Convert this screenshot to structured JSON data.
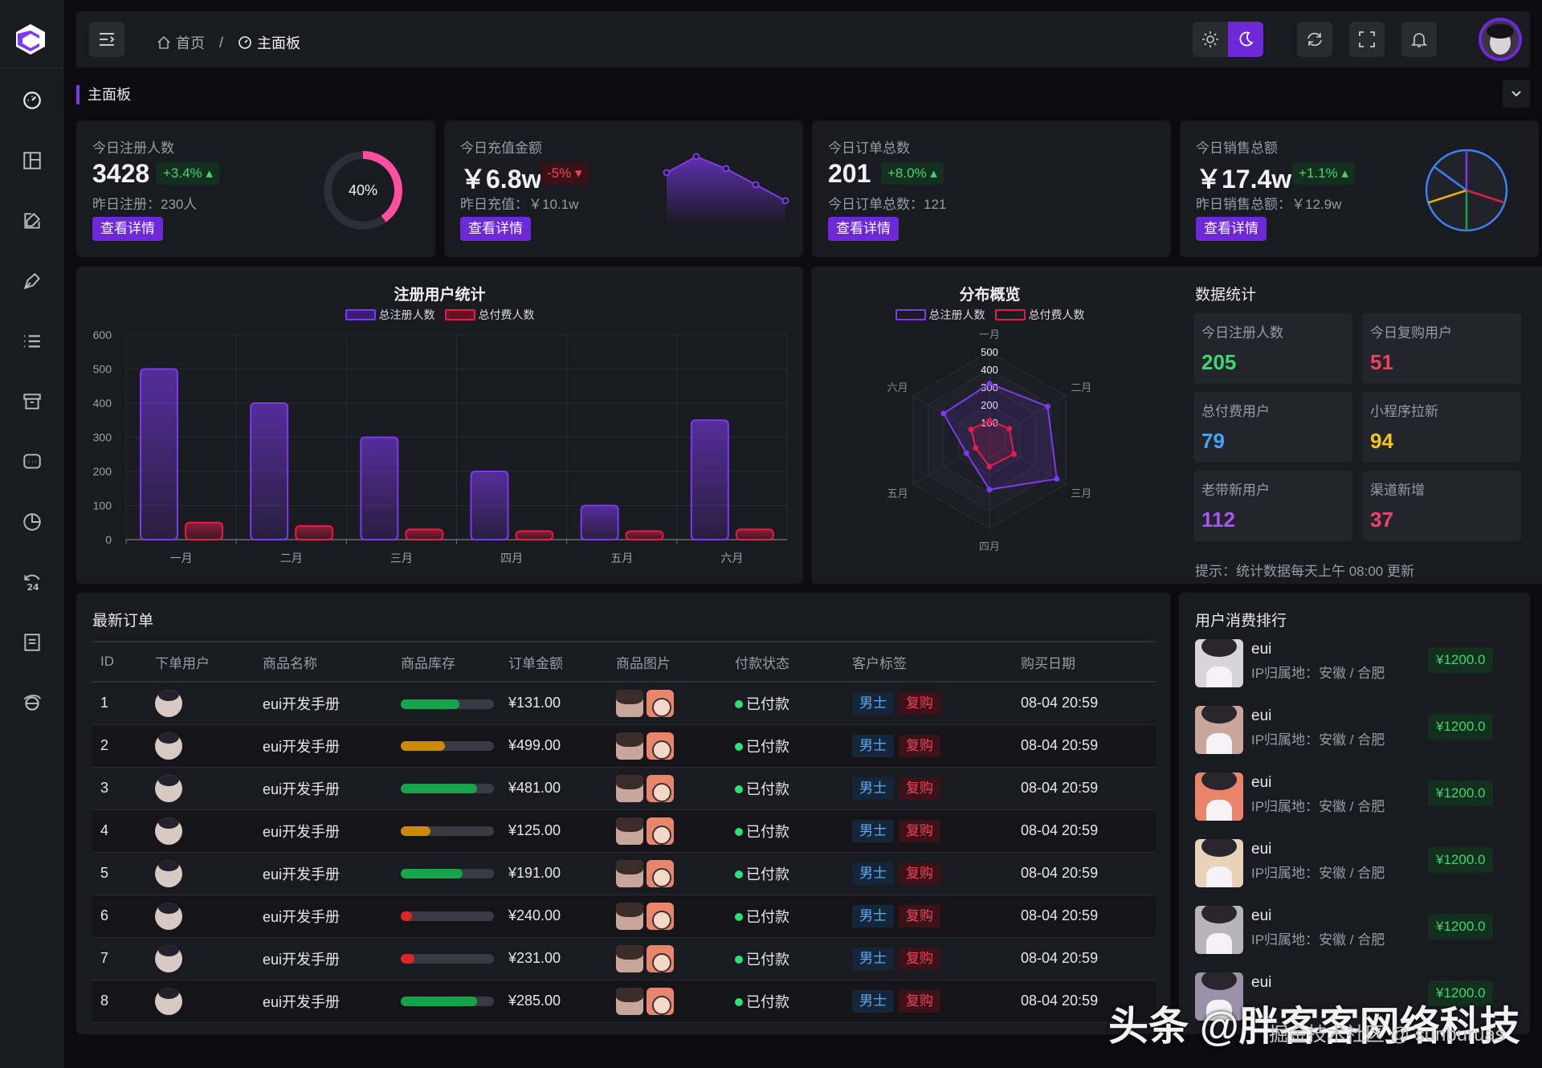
{
  "colors": {
    "accent": "#6d28d9",
    "panel": "#1a1a21",
    "bg": "#0c0c10",
    "green": "#3ed671",
    "red": "#f0415a"
  },
  "header": {
    "breadcrumb": [
      {
        "icon": "home-icon",
        "label": "首页"
      },
      {
        "icon": "dashboard-icon",
        "label": "主面板"
      }
    ],
    "separator": "/",
    "icons": [
      "sun-icon",
      "moon-icon",
      "refresh-icon",
      "fullscreen-icon",
      "bell-icon",
      "avatar"
    ]
  },
  "tabs": {
    "active": "主面板"
  },
  "sidebar": {
    "items": [
      "dashboard-icon",
      "layout-icon",
      "edit-icon",
      "pen-icon",
      "list-icon",
      "archive-icon",
      "message-icon",
      "pie-icon",
      "hours-24-icon",
      "document-icon",
      "ie-icon"
    ]
  },
  "stats": [
    {
      "label": "今日注册人数",
      "value": "3428",
      "change": "+3.4%",
      "trend": "up",
      "sub": "昨日注册：230人",
      "button": "查看详情",
      "ring": "40%"
    },
    {
      "label": "今日充值金额",
      "value": "￥6.8w",
      "change": "-5%",
      "trend": "down",
      "sub": "昨日充值：￥10.1w",
      "button": "查看详情"
    },
    {
      "label": "今日订单总数",
      "value": "201",
      "change": "+8.0%",
      "trend": "up",
      "sub": "今日订单总数：121",
      "button": "查看详情"
    },
    {
      "label": "今日销售总额",
      "value": "￥17.4w",
      "change": "+1.1%",
      "trend": "up",
      "sub": "昨日销售总额：￥12.9w",
      "button": "查看详情"
    }
  ],
  "chart_data": [
    {
      "type": "bar",
      "title": "注册用户统计",
      "categories": [
        "一月",
        "二月",
        "三月",
        "四月",
        "五月",
        "六月"
      ],
      "series": [
        {
          "name": "总注册人数",
          "values": [
            500,
            400,
            300,
            200,
            100,
            350
          ],
          "color": "#7c3aed"
        },
        {
          "name": "总付费人数",
          "values": [
            50,
            40,
            30,
            25,
            25,
            30
          ],
          "color": "#e11d48"
        }
      ],
      "yticks": [
        0,
        100,
        200,
        300,
        400,
        500,
        600
      ],
      "ylim": [
        0,
        600
      ],
      "legend": "top-center"
    },
    {
      "type": "radar",
      "title": "分布概览",
      "indicators": [
        "一月",
        "二月",
        "三月",
        "四月",
        "五月",
        "六月"
      ],
      "rticks": [
        100,
        200,
        300,
        400,
        500
      ],
      "rmax": 500,
      "series": [
        {
          "name": "总注册人数",
          "values": [
            320,
            380,
            440,
            280,
            150,
            300
          ],
          "color": "#7c3aed"
        },
        {
          "name": "总付费人数",
          "values": [
            110,
            130,
            160,
            150,
            90,
            120
          ],
          "color": "#e11d48"
        }
      ],
      "legend": "top-center"
    },
    {
      "type": "line",
      "categories": [
        "1",
        "2",
        "3",
        "4",
        "5"
      ],
      "values": [
        60,
        80,
        65,
        45,
        25
      ],
      "color": "#7c3aed"
    },
    {
      "type": "pie",
      "values": [
        30,
        20,
        20,
        15,
        15
      ],
      "colors": [
        "#7c3aed",
        "#e11d48",
        "#16a34a",
        "#eab308",
        "#3b82f6"
      ]
    }
  ],
  "data_stats": {
    "title": "数据统计",
    "cells": [
      {
        "label": "今日注册人数",
        "value": "205",
        "color": "#3ed671"
      },
      {
        "label": "今日复购用户",
        "value": "51",
        "color": "#f0415a"
      },
      {
        "label": "总付费用户",
        "value": "79",
        "color": "#3ea7f0"
      },
      {
        "label": "小程序拉新",
        "value": "94",
        "color": "#f5c518"
      },
      {
        "label": "老带新用户",
        "value": "112",
        "color": "#a855f7"
      },
      {
        "label": "渠道新增",
        "value": "37",
        "color": "#f0416e"
      }
    ],
    "tip": "提示：统计数据每天上午 08:00 更新"
  },
  "orders": {
    "title": "最新订单",
    "columns": [
      "ID",
      "下单用户",
      "商品名称",
      "商品库存",
      "订单金额",
      "商品图片",
      "付款状态",
      "客户标签",
      "购买日期"
    ],
    "rows": [
      {
        "id": "1",
        "name": "eui开发手册",
        "stock": 0.63,
        "stock_color": "#16a34a",
        "amount": "¥131.00",
        "status": "已付款",
        "tag1": "男士",
        "tag2": "复购",
        "date": "08-04 20:59"
      },
      {
        "id": "2",
        "name": "eui开发手册",
        "stock": 0.47,
        "stock_color": "#ca8a04",
        "amount": "¥499.00",
        "status": "已付款",
        "tag1": "男士",
        "tag2": "复购",
        "date": "08-04 20:59"
      },
      {
        "id": "3",
        "name": "eui开发手册",
        "stock": 0.82,
        "stock_color": "#16a34a",
        "amount": "¥481.00",
        "status": "已付款",
        "tag1": "男士",
        "tag2": "复购",
        "date": "08-04 20:59"
      },
      {
        "id": "4",
        "name": "eui开发手册",
        "stock": 0.32,
        "stock_color": "#ca8a04",
        "amount": "¥125.00",
        "status": "已付款",
        "tag1": "男士",
        "tag2": "复购",
        "date": "08-04 20:59"
      },
      {
        "id": "5",
        "name": "eui开发手册",
        "stock": 0.66,
        "stock_color": "#16a34a",
        "amount": "¥191.00",
        "status": "已付款",
        "tag1": "男士",
        "tag2": "复购",
        "date": "08-04 20:59"
      },
      {
        "id": "6",
        "name": "eui开发手册",
        "stock": 0.12,
        "stock_color": "#dc2626",
        "amount": "¥240.00",
        "status": "已付款",
        "tag1": "男士",
        "tag2": "复购",
        "date": "08-04 20:59"
      },
      {
        "id": "7",
        "name": "eui开发手册",
        "stock": 0.15,
        "stock_color": "#dc2626",
        "amount": "¥231.00",
        "status": "已付款",
        "tag1": "男士",
        "tag2": "复购",
        "date": "08-04 20:59"
      },
      {
        "id": "8",
        "name": "eui开发手册",
        "stock": 0.82,
        "stock_color": "#16a34a",
        "amount": "¥285.00",
        "status": "已付款",
        "tag1": "男士",
        "tag2": "复购",
        "date": "08-04 20:59"
      }
    ]
  },
  "ranking": {
    "title": "用户消费排行",
    "items": [
      {
        "name": "eui",
        "ip": "IP归属地：安徽 / 合肥",
        "amount": "¥1200.0",
        "bg": "#d8d4dc"
      },
      {
        "name": "eui",
        "ip": "IP归属地：安徽 / 合肥",
        "amount": "¥1200.0",
        "bg": "#c9a69b"
      },
      {
        "name": "eui",
        "ip": "IP归属地：安徽 / 合肥",
        "amount": "¥1200.0",
        "bg": "#e9856b"
      },
      {
        "name": "eui",
        "ip": "IP归属地：安徽 / 合肥",
        "amount": "¥1200.0",
        "bg": "#e8d2b8"
      },
      {
        "name": "eui",
        "ip": "IP归属地：安徽 / 合肥",
        "amount": "¥1200.0",
        "bg": "#b8b4bc"
      },
      {
        "name": "eui",
        "ip": "",
        "amount": "¥1200.0",
        "bg": "#9a92a8"
      }
    ]
  },
  "watermark": {
    "main": "头条 @胖客客网络科技",
    "sub": "掘金技术社区 @ sunburuas"
  }
}
